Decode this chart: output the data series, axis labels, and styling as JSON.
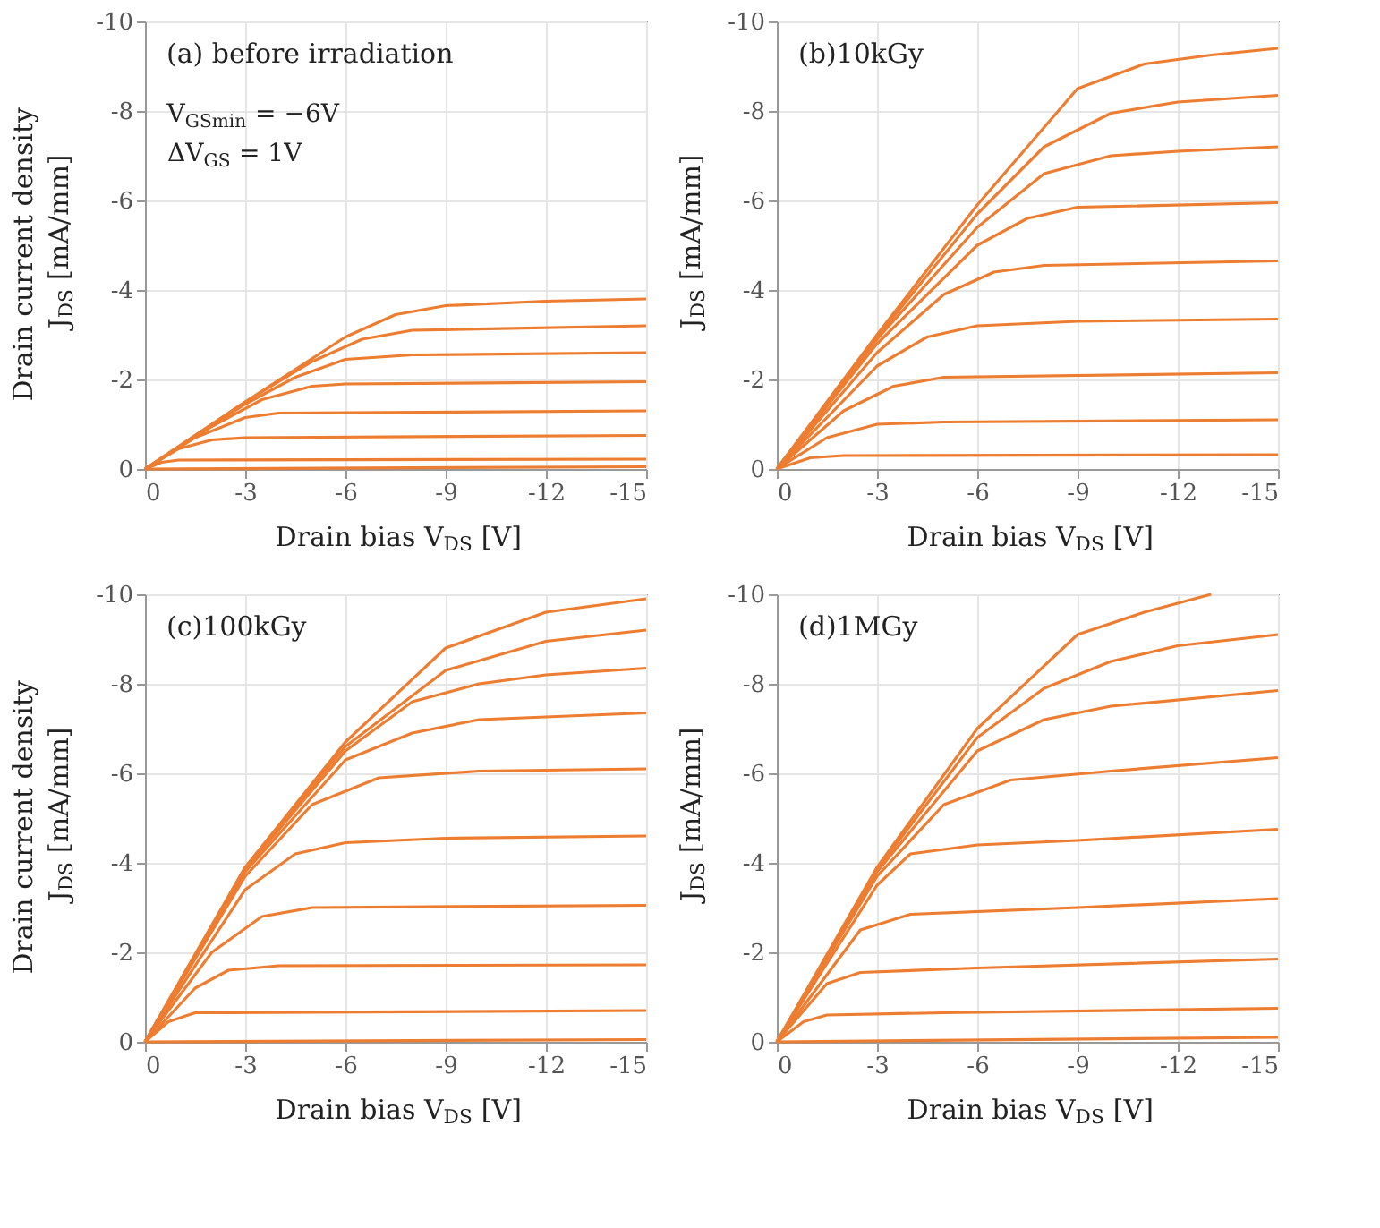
{
  "chart_data": [
    {
      "type": "line",
      "title": "(a) before irradiation",
      "xlabel": "Drain bias V$_{DS}$ [V]",
      "ylabel": "Drain current density\nJ$_{DS}$ [mA/mm]",
      "annotations": [
        "V$_{GSmin}$ = −6V",
        "ΔV$_{GS}$ = 1V"
      ],
      "xlim": [
        0,
        -15
      ],
      "ylim": [
        0,
        -10
      ],
      "xticks": [
        0,
        -3,
        -6,
        -9,
        -12,
        -15
      ],
      "yticks": [
        0,
        -2,
        -4,
        -6,
        -8,
        -10
      ],
      "grid": true,
      "legend": false,
      "marker": "none",
      "line_style": "solid",
      "series": [
        {
          "color": "#ed7d31",
          "x": [
            0,
            -15
          ],
          "values": [
            0,
            -0.05
          ]
        },
        {
          "color": "#ed7d31",
          "x": [
            0,
            -0.5,
            -1,
            -15
          ],
          "values": [
            0,
            -0.15,
            -0.2,
            -0.22
          ]
        },
        {
          "color": "#ed7d31",
          "x": [
            0,
            -1,
            -2,
            -3,
            -15
          ],
          "values": [
            0,
            -0.45,
            -0.65,
            -0.7,
            -0.75
          ]
        },
        {
          "color": "#ed7d31",
          "x": [
            0,
            -1.5,
            -3,
            -4,
            -15
          ],
          "values": [
            0,
            -0.7,
            -1.15,
            -1.25,
            -1.3
          ]
        },
        {
          "color": "#ed7d31",
          "x": [
            0,
            -2,
            -3.5,
            -5,
            -6,
            -15
          ],
          "values": [
            0,
            -0.95,
            -1.55,
            -1.85,
            -1.9,
            -1.95
          ]
        },
        {
          "color": "#ed7d31",
          "x": [
            0,
            -3,
            -4.5,
            -6,
            -8,
            -15
          ],
          "values": [
            0,
            -1.45,
            -2.05,
            -2.45,
            -2.55,
            -2.6
          ]
        },
        {
          "color": "#ed7d31",
          "x": [
            0,
            -3,
            -5,
            -6.5,
            -8,
            -15
          ],
          "values": [
            0,
            -1.5,
            -2.4,
            -2.9,
            -3.1,
            -3.2
          ]
        },
        {
          "color": "#ed7d31",
          "x": [
            0,
            -3,
            -6,
            -7.5,
            -9,
            -12,
            -15
          ],
          "values": [
            0,
            -1.5,
            -2.95,
            -3.45,
            -3.65,
            -3.75,
            -3.8
          ]
        }
      ]
    },
    {
      "type": "line",
      "title": "(b)10kGy",
      "xlabel": "Drain bias V$_{DS}$ [V]",
      "ylabel": "J$_{DS}$ [mA/mm]",
      "xlim": [
        0,
        -15
      ],
      "ylim": [
        0,
        -10
      ],
      "xticks": [
        0,
        -3,
        -6,
        -9,
        -12,
        -15
      ],
      "yticks": [
        0,
        -2,
        -4,
        -6,
        -8,
        -10
      ],
      "grid": true,
      "legend": false,
      "marker": "none",
      "line_style": "solid",
      "series": [
        {
          "color": "#ed7d31",
          "x": [
            0,
            -1,
            -2,
            -15
          ],
          "values": [
            0,
            -0.25,
            -0.3,
            -0.32
          ]
        },
        {
          "color": "#ed7d31",
          "x": [
            0,
            -1.5,
            -3,
            -5,
            -15
          ],
          "values": [
            0,
            -0.7,
            -1.0,
            -1.05,
            -1.1
          ]
        },
        {
          "color": "#ed7d31",
          "x": [
            0,
            -2,
            -3.5,
            -5,
            -15
          ],
          "values": [
            0,
            -1.3,
            -1.85,
            -2.05,
            -2.15
          ]
        },
        {
          "color": "#ed7d31",
          "x": [
            0,
            -3,
            -4.5,
            -6,
            -9,
            -15
          ],
          "values": [
            0,
            -2.3,
            -2.95,
            -3.2,
            -3.3,
            -3.35
          ]
        },
        {
          "color": "#ed7d31",
          "x": [
            0,
            -3,
            -5,
            -6.5,
            -8,
            -15
          ],
          "values": [
            0,
            -2.6,
            -3.9,
            -4.4,
            -4.55,
            -4.65
          ]
        },
        {
          "color": "#ed7d31",
          "x": [
            0,
            -3,
            -6,
            -7.5,
            -9,
            -15
          ],
          "values": [
            0,
            -2.8,
            -5.0,
            -5.6,
            -5.85,
            -5.95
          ]
        },
        {
          "color": "#ed7d31",
          "x": [
            0,
            -3,
            -6,
            -8,
            -10,
            -12,
            -15
          ],
          "values": [
            0,
            -2.9,
            -5.4,
            -6.6,
            -7.0,
            -7.1,
            -7.2
          ]
        },
        {
          "color": "#ed7d31",
          "x": [
            0,
            -3,
            -6,
            -8,
            -10,
            -12,
            -15
          ],
          "values": [
            0,
            -2.95,
            -5.7,
            -7.2,
            -7.95,
            -8.2,
            -8.35
          ]
        },
        {
          "color": "#ed7d31",
          "x": [
            0,
            -3,
            -6,
            -9,
            -11,
            -13,
            -15
          ],
          "values": [
            0,
            -3.0,
            -5.9,
            -8.5,
            -9.05,
            -9.25,
            -9.4
          ]
        }
      ]
    },
    {
      "type": "line",
      "title": "(c)100kGy",
      "xlabel": "Drain bias V$_{DS}$ [V]",
      "ylabel": "Drain current density\nJ$_{DS}$ [mA/mm]",
      "xlim": [
        0,
        -15
      ],
      "ylim": [
        0,
        -10
      ],
      "xticks": [
        0,
        -3,
        -6,
        -9,
        -12,
        -15
      ],
      "yticks": [
        0,
        -2,
        -4,
        -6,
        -8,
        -10
      ],
      "grid": true,
      "legend": false,
      "marker": "none",
      "line_style": "solid",
      "series": [
        {
          "color": "#ed7d31",
          "x": [
            0,
            -15
          ],
          "values": [
            0,
            -0.05
          ]
        },
        {
          "color": "#ed7d31",
          "x": [
            0,
            -0.7,
            -1.5,
            -15
          ],
          "values": [
            0,
            -0.45,
            -0.65,
            -0.7
          ]
        },
        {
          "color": "#ed7d31",
          "x": [
            0,
            -1.5,
            -2.5,
            -4,
            -15
          ],
          "values": [
            0,
            -1.2,
            -1.6,
            -1.7,
            -1.72
          ]
        },
        {
          "color": "#ed7d31",
          "x": [
            0,
            -2,
            -3.5,
            -5,
            -15
          ],
          "values": [
            0,
            -2.0,
            -2.8,
            -3.0,
            -3.05
          ]
        },
        {
          "color": "#ed7d31",
          "x": [
            0,
            -3,
            -4.5,
            -6,
            -9,
            -15
          ],
          "values": [
            0,
            -3.4,
            -4.2,
            -4.45,
            -4.55,
            -4.6
          ]
        },
        {
          "color": "#ed7d31",
          "x": [
            0,
            -3,
            -5,
            -7,
            -10,
            -15
          ],
          "values": [
            0,
            -3.7,
            -5.3,
            -5.9,
            -6.05,
            -6.1
          ]
        },
        {
          "color": "#ed7d31",
          "x": [
            0,
            -3,
            -6,
            -8,
            -10,
            -15
          ],
          "values": [
            0,
            -3.8,
            -6.3,
            -6.9,
            -7.2,
            -7.35
          ]
        },
        {
          "color": "#ed7d31",
          "x": [
            0,
            -3,
            -6,
            -8,
            -10,
            -12,
            -15
          ],
          "values": [
            0,
            -3.85,
            -6.5,
            -7.6,
            -8.0,
            -8.2,
            -8.35
          ]
        },
        {
          "color": "#ed7d31",
          "x": [
            0,
            -3,
            -6,
            -9,
            -12,
            -15
          ],
          "values": [
            0,
            -3.9,
            -6.6,
            -8.3,
            -8.95,
            -9.2
          ]
        },
        {
          "color": "#ed7d31",
          "x": [
            0,
            -3,
            -6,
            -9,
            -12,
            -15
          ],
          "values": [
            0,
            -3.9,
            -6.7,
            -8.8,
            -9.6,
            -9.9
          ]
        }
      ]
    },
    {
      "type": "line",
      "title": "(d)1MGy",
      "xlabel": "Drain bias V$_{DS}$ [V]",
      "ylabel": "J$_{DS}$ [mA/mm]",
      "xlim": [
        0,
        -15
      ],
      "ylim": [
        0,
        -10
      ],
      "xticks": [
        0,
        -3,
        -6,
        -9,
        -12,
        -15
      ],
      "yticks": [
        0,
        -2,
        -4,
        -6,
        -8,
        -10
      ],
      "grid": true,
      "legend": false,
      "marker": "none",
      "line_style": "solid",
      "series": [
        {
          "color": "#ed7d31",
          "x": [
            0,
            -15
          ],
          "values": [
            0,
            -0.1
          ]
        },
        {
          "color": "#ed7d31",
          "x": [
            0,
            -0.8,
            -1.5,
            -5,
            -15
          ],
          "values": [
            0,
            -0.45,
            -0.6,
            -0.65,
            -0.75
          ]
        },
        {
          "color": "#ed7d31",
          "x": [
            0,
            -1.5,
            -2.5,
            -6,
            -15
          ],
          "values": [
            0,
            -1.3,
            -1.55,
            -1.65,
            -1.85
          ]
        },
        {
          "color": "#ed7d31",
          "x": [
            0,
            -2.5,
            -4,
            -9,
            -15
          ],
          "values": [
            0,
            -2.5,
            -2.85,
            -3.0,
            -3.2
          ]
        },
        {
          "color": "#ed7d31",
          "x": [
            0,
            -3,
            -4,
            -6,
            -9,
            -15
          ],
          "values": [
            0,
            -3.5,
            -4.2,
            -4.4,
            -4.5,
            -4.75
          ]
        },
        {
          "color": "#ed7d31",
          "x": [
            0,
            -3,
            -5,
            -7,
            -10,
            -15
          ],
          "values": [
            0,
            -3.7,
            -5.3,
            -5.85,
            -6.05,
            -6.35
          ]
        },
        {
          "color": "#ed7d31",
          "x": [
            0,
            -3,
            -6,
            -8,
            -10,
            -15
          ],
          "values": [
            0,
            -3.8,
            -6.5,
            -7.2,
            -7.5,
            -7.85
          ]
        },
        {
          "color": "#ed7d31",
          "x": [
            0,
            -3,
            -6,
            -8,
            -10,
            -12,
            -15
          ],
          "values": [
            0,
            -3.85,
            -6.8,
            -7.9,
            -8.5,
            -8.85,
            -9.1
          ]
        },
        {
          "color": "#ed7d31",
          "x": [
            0,
            -3,
            -6,
            -9,
            -11,
            -13
          ],
          "values": [
            0,
            -3.9,
            -7.0,
            -9.1,
            -9.6,
            -10
          ]
        }
      ]
    }
  ]
}
